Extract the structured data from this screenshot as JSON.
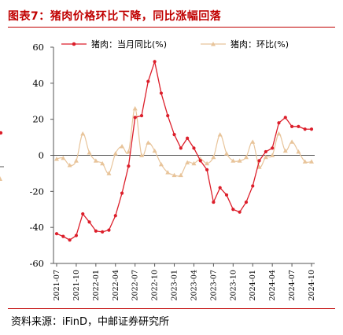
{
  "header": {
    "title": "图表7：猪肉价格环比下降，同比涨幅回落"
  },
  "footer": {
    "source": "资料来源：iFinD，中邮证券研究所"
  },
  "colors": {
    "yoy": "#dc1e2a",
    "mom": "#e8c49a",
    "title": "#c00000"
  },
  "chart_data": {
    "type": "line",
    "title": "",
    "xlabel": "",
    "ylabel": "",
    "ylim": [
      -60,
      60
    ],
    "yticks": [
      -60,
      -40,
      -20,
      0,
      20,
      40,
      60
    ],
    "grid": false,
    "legend_position": "top",
    "x": [
      "2021-07",
      "2021-08",
      "2021-09",
      "2021-10",
      "2021-11",
      "2021-12",
      "2022-01",
      "2022-02",
      "2022-03",
      "2022-04",
      "2022-05",
      "2022-06",
      "2022-07",
      "2022-08",
      "2022-09",
      "2022-10",
      "2022-11",
      "2022-12",
      "2023-01",
      "2023-02",
      "2023-03",
      "2023-04",
      "2023-05",
      "2023-06",
      "2023-07",
      "2023-08",
      "2023-09",
      "2023-10",
      "2023-11",
      "2023-12",
      "2024-01",
      "2024-02",
      "2024-03",
      "2024-04",
      "2024-05",
      "2024-06",
      "2024-07",
      "2024-08",
      "2024-09",
      "2024-10"
    ],
    "xticks": [
      "2021-07",
      "2021-10",
      "2022-01",
      "2022-04",
      "2022-07",
      "2022-10",
      "2023-01",
      "2023-04",
      "2023-07",
      "2023-10",
      "2024-01",
      "2024-04",
      "2024-07",
      "2024-10"
    ],
    "series": [
      {
        "name": "猪肉：当月同比(%)",
        "color": "#dc1e2a",
        "marker": "circle",
        "values": [
          -43.5,
          -45,
          -47,
          -44.5,
          -32.5,
          -37,
          -42,
          -42.5,
          -41.5,
          -33.5,
          -21,
          -6,
          21,
          22,
          41,
          52,
          34.5,
          22,
          11.5,
          4,
          9.5,
          4,
          -3,
          -8,
          -26,
          -18,
          -22,
          -30,
          -31.5,
          -26,
          -17,
          -3,
          2,
          4,
          18,
          21,
          16,
          16,
          14.5,
          14.5
        ]
      },
      {
        "name": "猪肉：环比(%)",
        "color": "#e8c49a",
        "marker": "triangle",
        "values": [
          -2,
          -1.5,
          -5.5,
          -3,
          12,
          1.5,
          -3,
          -4.5,
          -10,
          1,
          5,
          2,
          26,
          0,
          7,
          2.5,
          -5,
          -9.5,
          -11,
          -11,
          -4,
          -4.5,
          -2,
          -4.5,
          -1,
          11.5,
          1,
          -3,
          -3,
          -1,
          7.5,
          -6.5,
          -1,
          0,
          12,
          2.5,
          7.5,
          2,
          -3.5,
          -3.5
        ]
      }
    ]
  }
}
